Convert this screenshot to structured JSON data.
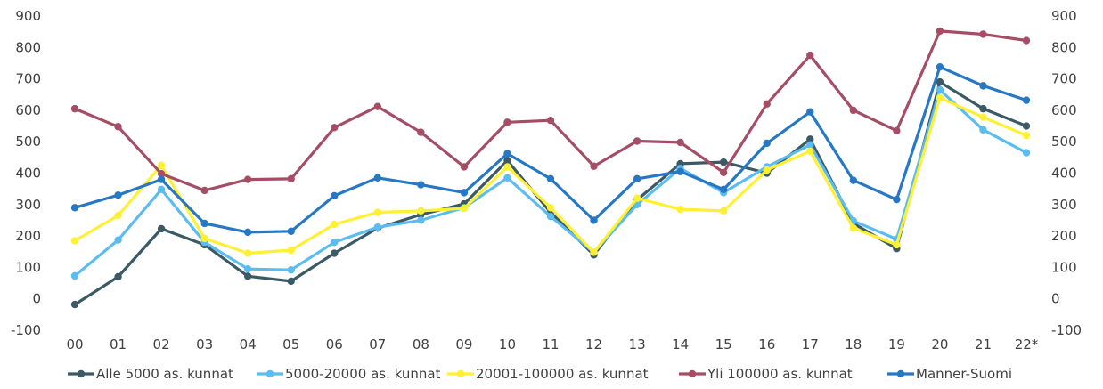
{
  "chart_data": {
    "type": "line",
    "title": "",
    "xlabel": "",
    "ylabel": "",
    "ylim": [
      -100,
      900
    ],
    "yticks": [
      -100,
      0,
      100,
      200,
      300,
      400,
      500,
      600,
      700,
      800,
      900
    ],
    "ytick_labels": [
      "-100",
      "0",
      "100",
      "200",
      "300",
      "400",
      "500",
      "600",
      "700",
      "800",
      "900"
    ],
    "secondary_axis": true,
    "grid": false,
    "legend_position": "bottom",
    "categories": [
      "00",
      "01",
      "02",
      "03",
      "04",
      "05",
      "06",
      "07",
      "08",
      "09",
      "10",
      "11",
      "12",
      "13",
      "14",
      "15",
      "16",
      "17",
      "18",
      "19",
      "20",
      "21",
      "22*"
    ],
    "series": [
      {
        "name": "Alle 5000 as. kunnat",
        "color": "#3b5a66",
        "values": [
          -18,
          70,
          223,
          172,
          72,
          56,
          145,
          225,
          268,
          302,
          440,
          275,
          140,
          315,
          430,
          435,
          400,
          508,
          240,
          160,
          690,
          605,
          550
        ]
      },
      {
        "name": "5000-20000 as. kunnat",
        "color": "#5bbcf0",
        "values": [
          73,
          187,
          348,
          180,
          95,
          92,
          180,
          228,
          250,
          290,
          385,
          262,
          148,
          300,
          415,
          338,
          420,
          490,
          248,
          190,
          665,
          538,
          465
        ]
      },
      {
        "name": "20001-100000 as. kunnat",
        "color": "#fff034",
        "values": [
          185,
          265,
          425,
          192,
          145,
          155,
          237,
          275,
          280,
          288,
          420,
          290,
          148,
          320,
          285,
          280,
          410,
          470,
          225,
          172,
          640,
          578,
          520
        ]
      },
      {
        "name": "Yli 100000 as. kunnat",
        "color": "#a64d66",
        "values": [
          605,
          548,
          398,
          345,
          380,
          382,
          545,
          612,
          530,
          420,
          562,
          568,
          422,
          502,
          498,
          402,
          620,
          775,
          600,
          535,
          852,
          842,
          822
        ]
      },
      {
        "name": "Manner-Suomi",
        "color": "#2778c4",
        "values": [
          290,
          330,
          380,
          240,
          212,
          215,
          328,
          385,
          363,
          338,
          462,
          382,
          250,
          382,
          405,
          348,
          495,
          595,
          377,
          316,
          738,
          678,
          632
        ]
      }
    ]
  }
}
